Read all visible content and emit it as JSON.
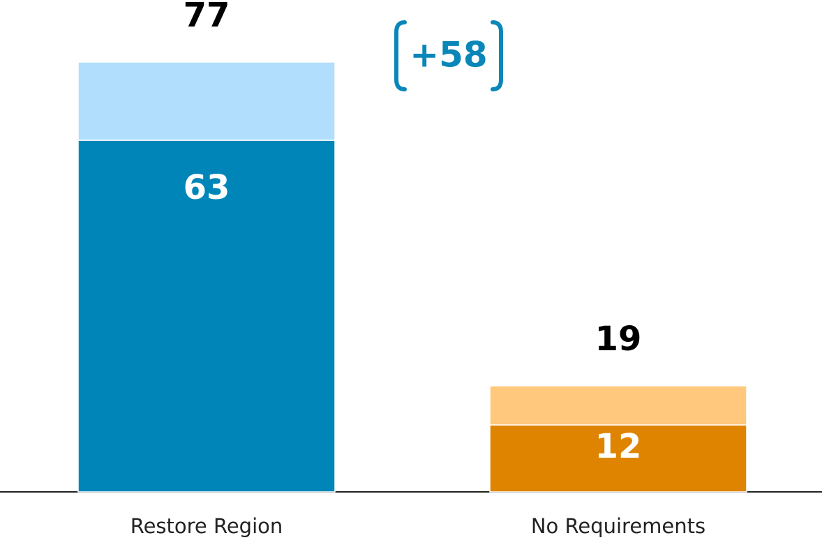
{
  "chart_data": {
    "type": "stacked_bar",
    "categories": [
      "Restore Region",
      "No Requirements"
    ],
    "series": [
      {
        "values": [
          63,
          12
        ],
        "colors": [
          "#0085b8",
          "#de8400"
        ]
      },
      {
        "values": [
          14,
          7
        ],
        "colors": [
          "#b0defc",
          "#ffc87c"
        ]
      }
    ],
    "totals": [
      77,
      19
    ],
    "annotation": "+58",
    "ylim": [
      0,
      80
    ]
  }
}
